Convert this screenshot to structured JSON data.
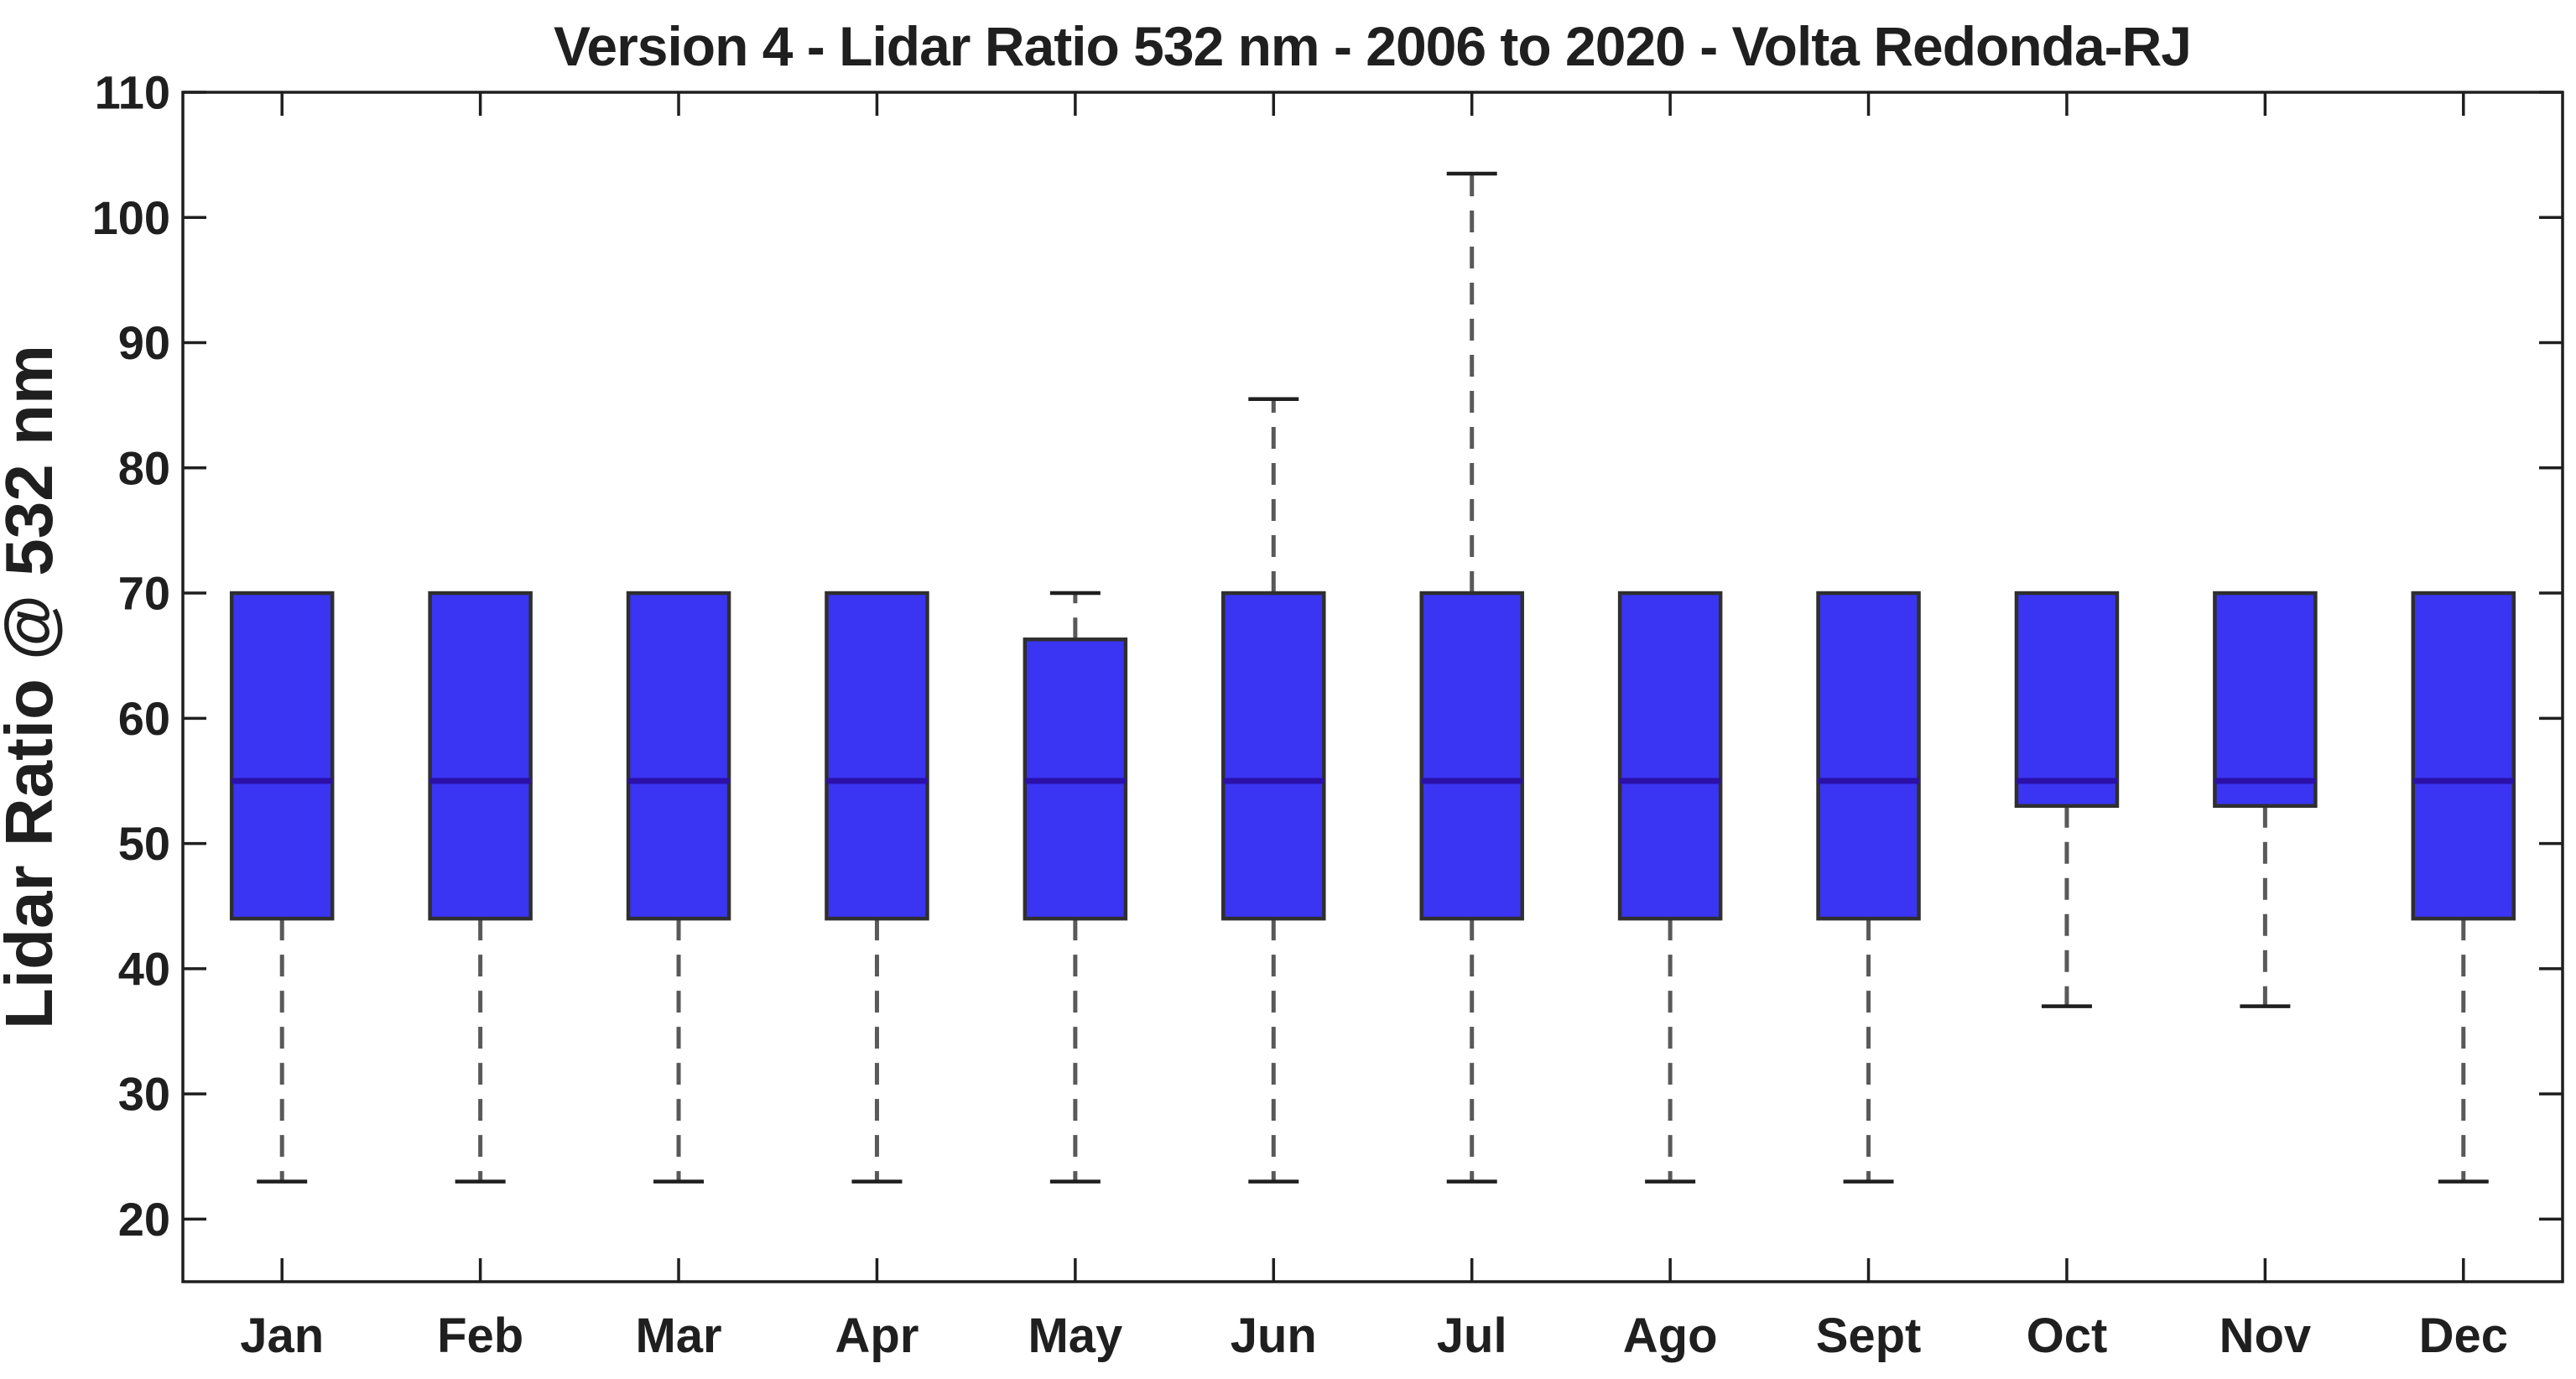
{
  "chart_data": {
    "type": "boxplot",
    "title": "Version 4 - Lidar Ratio 532 nm - 2006 to 2020 - Volta Redonda-RJ",
    "xlabel": "",
    "ylabel": "Lidar Ratio @ 532 nm",
    "categories": [
      "Jan",
      "Feb",
      "Mar",
      "Apr",
      "May",
      "Jun",
      "Jul",
      "Ago",
      "Sept",
      "Oct",
      "Nov",
      "Dec"
    ],
    "yticks": [
      20,
      30,
      40,
      50,
      60,
      70,
      80,
      90,
      100,
      110
    ],
    "ylim": [
      15,
      110
    ],
    "grid": false,
    "legend": "none",
    "boxes": [
      {
        "month": "Jan",
        "whislo": 23,
        "q1": 44,
        "med": 55,
        "q3": 70,
        "whishi": 70
      },
      {
        "month": "Feb",
        "whislo": 23,
        "q1": 44,
        "med": 55,
        "q3": 70,
        "whishi": 70
      },
      {
        "month": "Mar",
        "whislo": 23,
        "q1": 44,
        "med": 55,
        "q3": 70,
        "whishi": 70
      },
      {
        "month": "Apr",
        "whislo": 23,
        "q1": 44,
        "med": 55,
        "q3": 70,
        "whishi": 70
      },
      {
        "month": "May",
        "whislo": 23,
        "q1": 44,
        "med": 55,
        "q3": 66.3,
        "whishi": 70
      },
      {
        "month": "Jun",
        "whislo": 23,
        "q1": 44,
        "med": 55,
        "q3": 70,
        "whishi": 85.5
      },
      {
        "month": "Jul",
        "whislo": 23,
        "q1": 44,
        "med": 55,
        "q3": 70,
        "whishi": 103.5
      },
      {
        "month": "Ago",
        "whislo": 23,
        "q1": 44,
        "med": 55,
        "q3": 70,
        "whishi": 70
      },
      {
        "month": "Sept",
        "whislo": 23,
        "q1": 44,
        "med": 55,
        "q3": 70,
        "whishi": 70
      },
      {
        "month": "Oct",
        "whislo": 37,
        "q1": 53,
        "med": 55,
        "q3": 70,
        "whishi": 70
      },
      {
        "month": "Nov",
        "whislo": 37,
        "q1": 53,
        "med": 55,
        "q3": 70,
        "whishi": 70
      },
      {
        "month": "Dec",
        "whislo": 23,
        "q1": 44,
        "med": 55,
        "q3": 70,
        "whishi": 70
      }
    ],
    "colors": {
      "box_fill": "#3a35f2",
      "box_edge": "#2f2f2f",
      "median": "#2c10a8",
      "whisker": "#595959",
      "whisker_cap": "#1f1f1f",
      "frame": "#1f1f1f",
      "text": "#1f1f1f",
      "background": "#ffffff"
    }
  }
}
